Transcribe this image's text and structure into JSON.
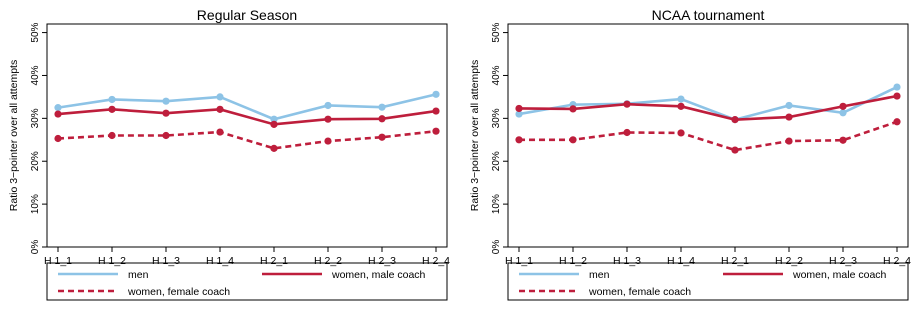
{
  "colors": {
    "men": "#8DC3E6",
    "women": "#BE1E3C",
    "axis": "#000000",
    "background": "#ffffff"
  },
  "chart_data": [
    {
      "type": "line",
      "title": "Regular Season",
      "xlabel": "",
      "ylabel": "Ratio 3−pointer over all attempts",
      "categories": [
        "H 1_1",
        "H 1_2",
        "H 1_3",
        "H 1_4",
        "H 2_1",
        "H 2_2",
        "H 2_3",
        "H 2_4"
      ],
      "ylim": [
        0,
        52
      ],
      "yticks": [
        0,
        10,
        20,
        30,
        40,
        50
      ],
      "ytick_labels": [
        "0%",
        "10%",
        "20%",
        "30%",
        "40%",
        "50%"
      ],
      "grid": false,
      "legend_position": "bottom",
      "series": [
        {
          "name": "men",
          "color": "#8DC3E6",
          "style": "solid",
          "values": [
            32.5,
            34.4,
            34.0,
            35.0,
            29.8,
            33.0,
            32.6,
            35.6
          ]
        },
        {
          "name": "women, male coach",
          "color": "#BE1E3C",
          "style": "solid",
          "values": [
            31.0,
            32.1,
            31.2,
            32.1,
            28.6,
            29.8,
            29.9,
            31.7
          ]
        },
        {
          "name": "women, female coach",
          "color": "#BE1E3C",
          "style": "dashed",
          "values": [
            25.3,
            26.0,
            26.0,
            26.8,
            23.0,
            24.7,
            25.6,
            27.0
          ]
        }
      ]
    },
    {
      "type": "line",
      "title": "NCAA tournament",
      "xlabel": "",
      "ylabel": "Ratio 3−pointer over all attempts",
      "categories": [
        "H 1_1",
        "H 1_2",
        "H 1_3",
        "H 1_4",
        "H 2_1",
        "H 2_2",
        "H 2_3",
        "H 2_4"
      ],
      "ylim": [
        0,
        52
      ],
      "yticks": [
        0,
        10,
        20,
        30,
        40,
        50
      ],
      "ytick_labels": [
        "0%",
        "10%",
        "20%",
        "30%",
        "40%",
        "50%"
      ],
      "grid": false,
      "legend_position": "bottom",
      "series": [
        {
          "name": "men",
          "color": "#8DC3E6",
          "style": "solid",
          "values": [
            31.0,
            33.2,
            33.4,
            34.5,
            29.7,
            33.0,
            31.3,
            37.3
          ]
        },
        {
          "name": "women, male coach",
          "color": "#BE1E3C",
          "style": "solid",
          "values": [
            32.3,
            32.2,
            33.3,
            32.8,
            29.7,
            30.3,
            32.8,
            35.2
          ]
        },
        {
          "name": "women, female coach",
          "color": "#BE1E3C",
          "style": "dashed",
          "values": [
            25.0,
            25.0,
            26.7,
            26.6,
            22.6,
            24.7,
            24.9,
            29.2
          ]
        }
      ]
    }
  ]
}
